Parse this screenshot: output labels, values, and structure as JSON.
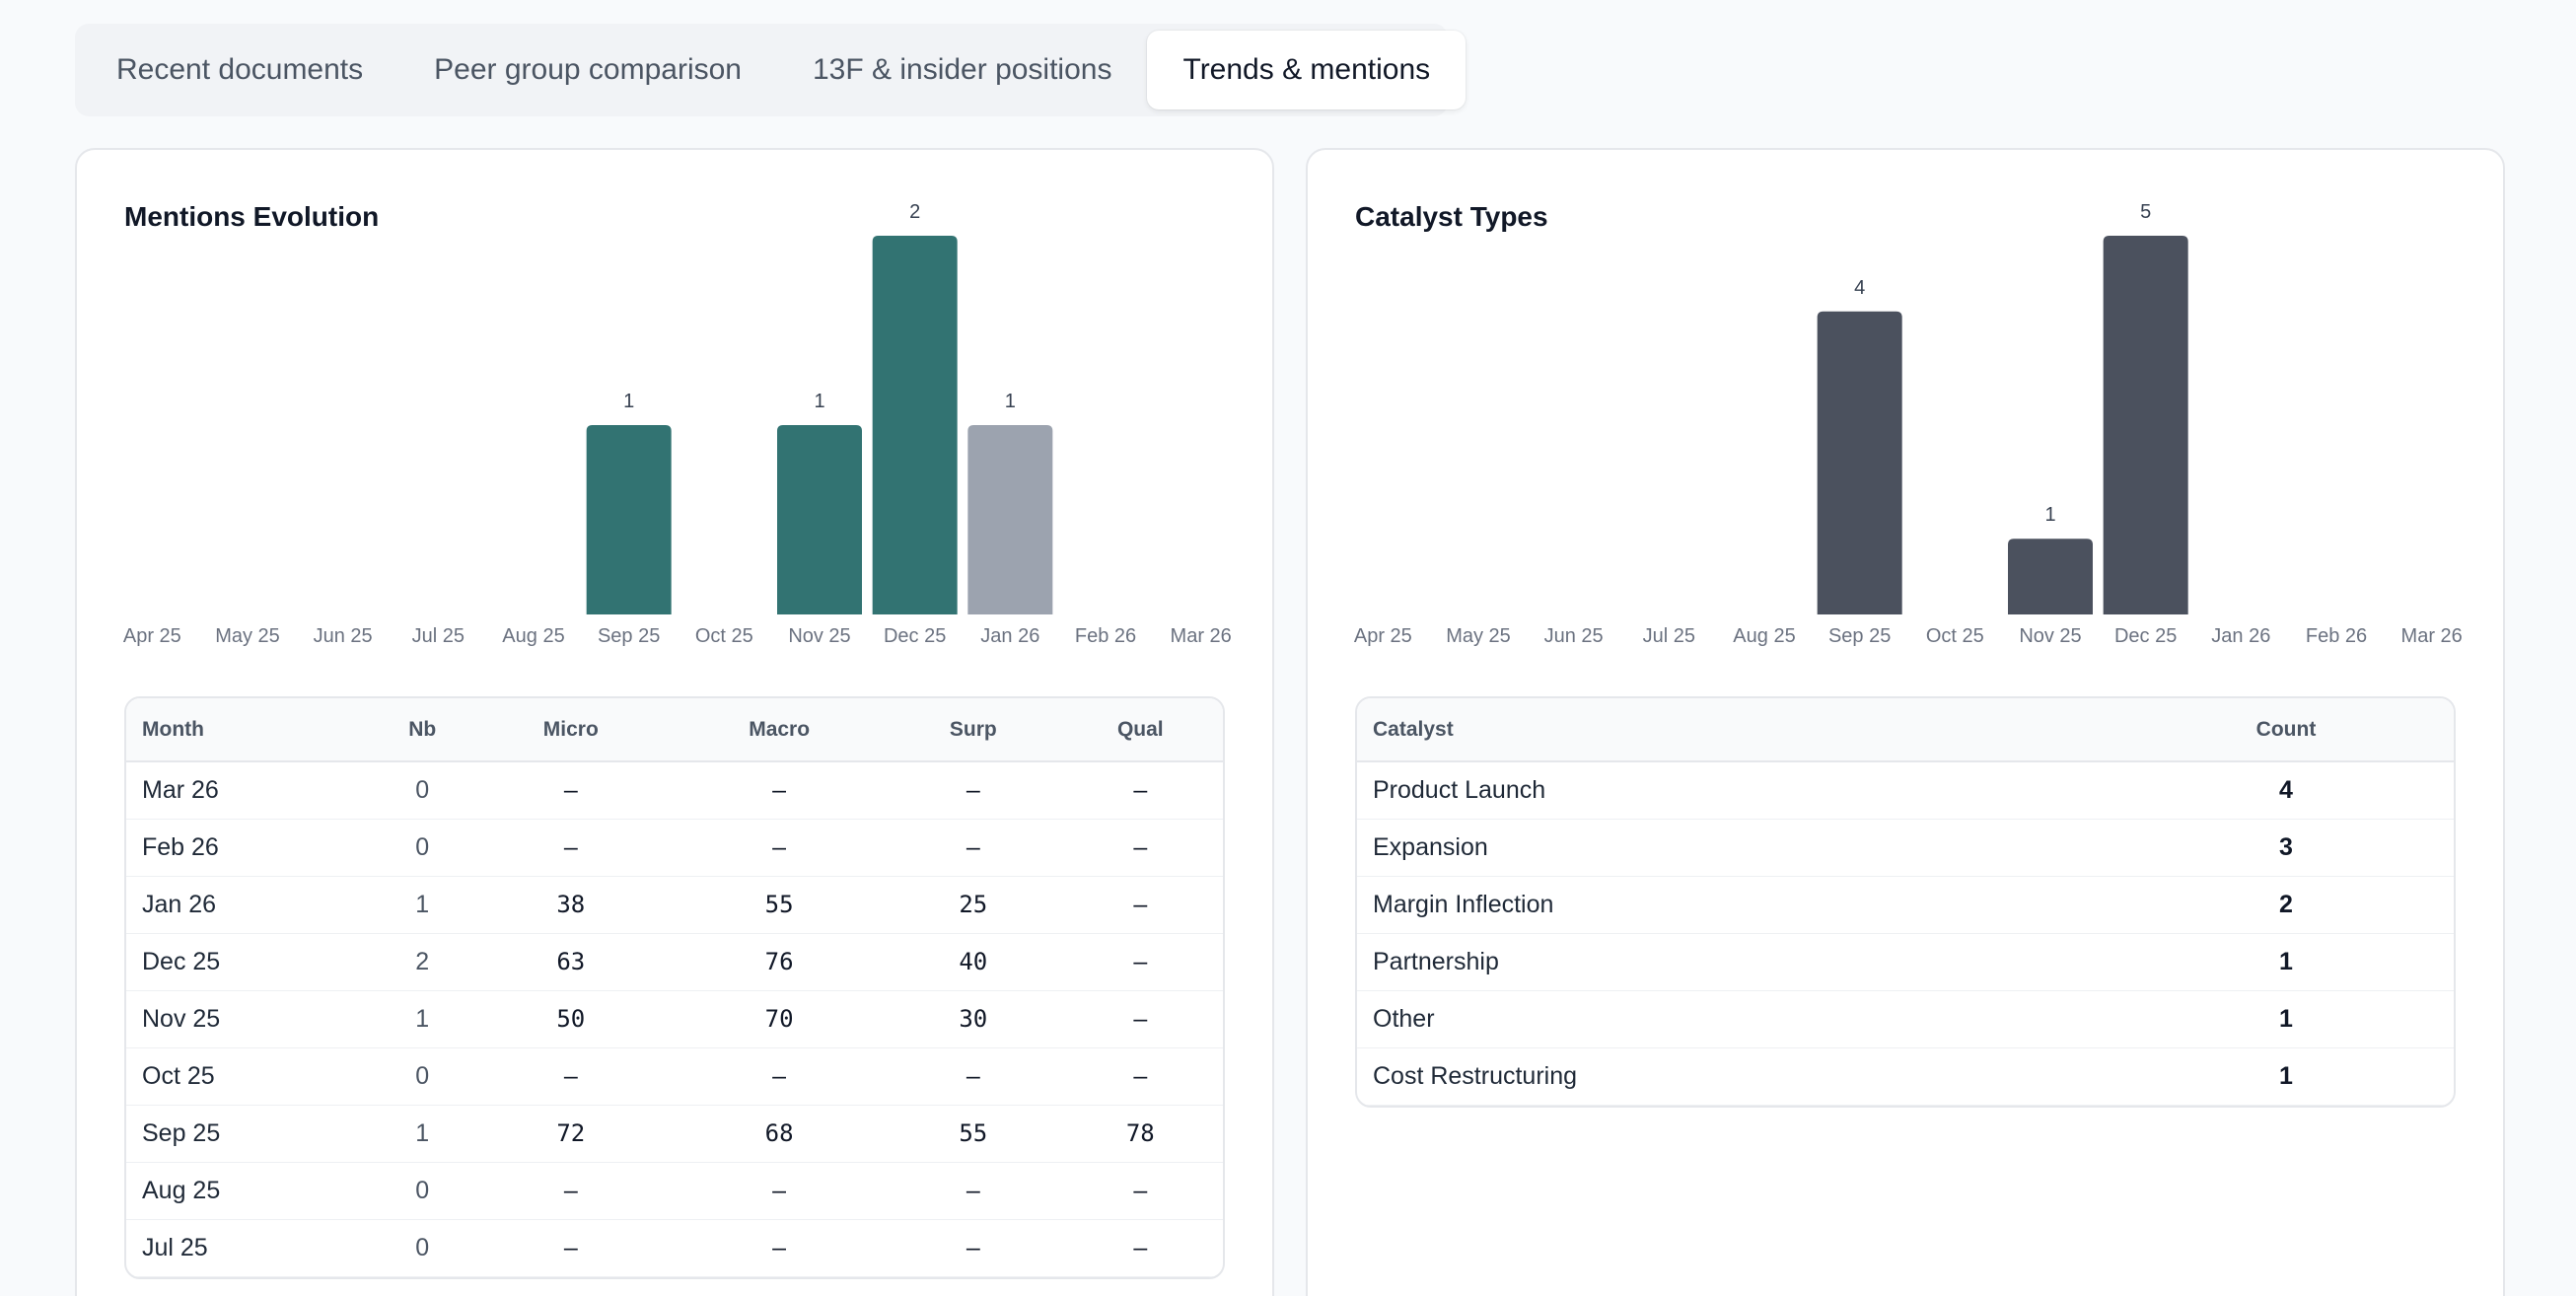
{
  "tabs": [
    {
      "label": "Recent documents",
      "active": false
    },
    {
      "label": "Peer group comparison",
      "active": false
    },
    {
      "label": "13F & insider positions",
      "active": false
    },
    {
      "label": "Trends & mentions",
      "active": true
    }
  ],
  "mentions": {
    "title": "Mentions Evolution",
    "colors": {
      "primary": "#327372",
      "muted": "#9ca3af"
    },
    "table": {
      "headers": [
        "Month",
        "Nb",
        "Micro",
        "Macro",
        "Surp",
        "Qual"
      ],
      "rows": [
        [
          "Mar 26",
          "0",
          "–",
          "–",
          "–",
          "–"
        ],
        [
          "Feb 26",
          "0",
          "–",
          "–",
          "–",
          "–"
        ],
        [
          "Jan 26",
          "1",
          "38",
          "55",
          "25",
          "–"
        ],
        [
          "Dec 25",
          "2",
          "63",
          "76",
          "40",
          "–"
        ],
        [
          "Nov 25",
          "1",
          "50",
          "70",
          "30",
          "–"
        ],
        [
          "Oct 25",
          "0",
          "–",
          "–",
          "–",
          "–"
        ],
        [
          "Sep 25",
          "1",
          "72",
          "68",
          "55",
          "78"
        ],
        [
          "Aug 25",
          "0",
          "–",
          "–",
          "–",
          "–"
        ],
        [
          "Jul 25",
          "0",
          "–",
          "–",
          "–",
          "–"
        ]
      ]
    }
  },
  "catalysts": {
    "title": "Catalyst Types",
    "colors": {
      "primary": "#4b515e"
    },
    "table": {
      "headers": [
        "Catalyst",
        "Count"
      ],
      "rows": [
        [
          "Product Launch",
          "4"
        ],
        [
          "Expansion",
          "3"
        ],
        [
          "Margin Inflection",
          "2"
        ],
        [
          "Partnership",
          "1"
        ],
        [
          "Other",
          "1"
        ],
        [
          "Cost Restructuring",
          "1"
        ]
      ]
    }
  },
  "chart_data": [
    {
      "type": "bar",
      "title": "Mentions Evolution",
      "categories": [
        "Apr 25",
        "May 25",
        "Jun 25",
        "Jul 25",
        "Aug 25",
        "Sep 25",
        "Oct 25",
        "Nov 25",
        "Dec 25",
        "Jan 26",
        "Feb 26",
        "Mar 26"
      ],
      "values": [
        0,
        0,
        0,
        0,
        0,
        1,
        0,
        1,
        2,
        1,
        0,
        0
      ],
      "bar_colors": [
        "#327372",
        "#327372",
        "#327372",
        "#327372",
        "#327372",
        "#327372",
        "#327372",
        "#327372",
        "#327372",
        "#9ca3af",
        "#327372",
        "#327372"
      ],
      "data_labels": true,
      "grid": false,
      "ylim": [
        0,
        2
      ]
    },
    {
      "type": "bar",
      "title": "Catalyst Types",
      "categories": [
        "Apr 25",
        "May 25",
        "Jun 25",
        "Jul 25",
        "Aug 25",
        "Sep 25",
        "Oct 25",
        "Nov 25",
        "Dec 25",
        "Jan 26",
        "Feb 26",
        "Mar 26"
      ],
      "values": [
        0,
        0,
        0,
        0,
        0,
        4,
        0,
        1,
        5,
        0,
        0,
        0
      ],
      "bar_colors": [
        "#4b515e"
      ],
      "data_labels": true,
      "grid": false,
      "ylim": [
        0,
        5
      ]
    }
  ]
}
